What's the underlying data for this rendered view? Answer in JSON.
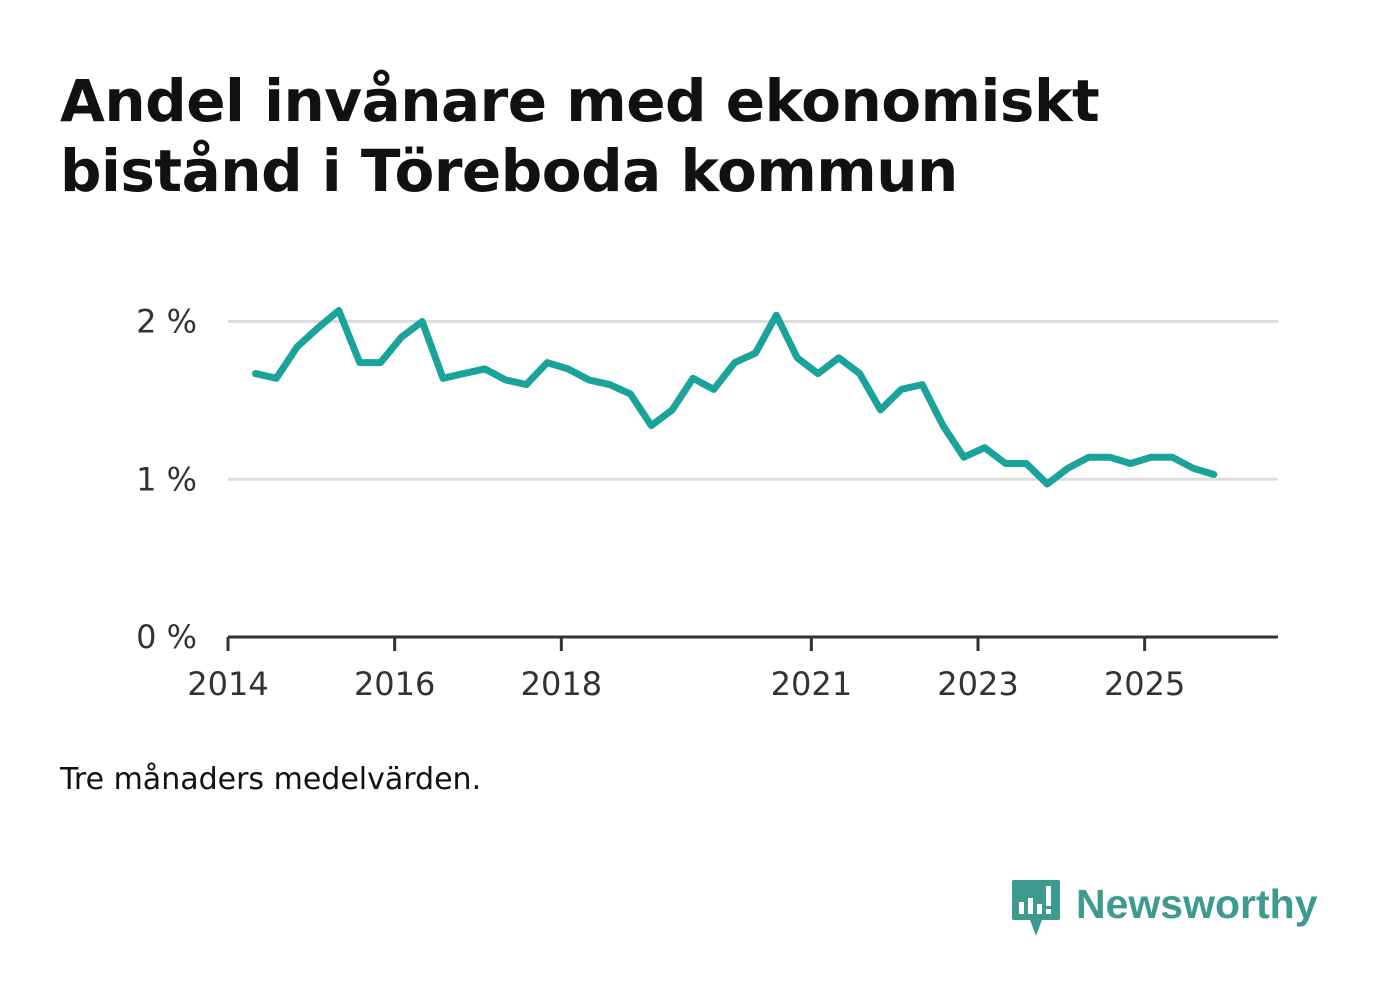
{
  "title": "Andel invånare med ekonomiskt bistånd i Töreboda kommun",
  "footnote": "Tre månaders medelvärden.",
  "brand": {
    "name": "Newsworthy",
    "icon": "bar-chart-speech-bubble-icon",
    "color": "#3e9a8e"
  },
  "colors": {
    "line": "#1aa39a",
    "grid": "#dddddd",
    "axis": "#333333",
    "text": "#111111"
  },
  "chart_data": {
    "type": "line",
    "title": "Andel invånare med ekonomiskt bistånd i Töreboda kommun",
    "xlabel": "",
    "ylabel": "",
    "xlim": [
      2014.0,
      2026.6
    ],
    "ylim": [
      0,
      2.2
    ],
    "yticks": [
      0,
      1,
      2
    ],
    "ytick_labels": [
      "0 %",
      "1 %",
      "2 %"
    ],
    "xticks": [
      2014,
      2016,
      2018,
      2021,
      2023,
      2025
    ],
    "xtick_labels": [
      "2014",
      "2016",
      "2018",
      "2021",
      "2023",
      "2025"
    ],
    "grid": true,
    "series": [
      {
        "name": "Andel invånare med ekonomiskt bistånd",
        "x": [
          2014.33,
          2014.58,
          2014.83,
          2015.08,
          2015.33,
          2015.58,
          2015.83,
          2016.08,
          2016.33,
          2016.58,
          2016.83,
          2017.08,
          2017.33,
          2017.58,
          2017.83,
          2018.08,
          2018.33,
          2018.58,
          2018.83,
          2019.08,
          2019.33,
          2019.58,
          2019.83,
          2020.08,
          2020.33,
          2020.58,
          2020.83,
          2021.08,
          2021.33,
          2021.58,
          2021.83,
          2022.08,
          2022.33,
          2022.58,
          2022.83,
          2023.08,
          2023.33,
          2023.58,
          2023.83,
          2024.08,
          2024.33,
          2024.58,
          2024.83,
          2025.08,
          2025.33,
          2025.58,
          2025.83
        ],
        "values": [
          1.67,
          1.64,
          1.84,
          1.96,
          2.07,
          1.74,
          1.74,
          1.9,
          2.0,
          1.64,
          1.67,
          1.7,
          1.63,
          1.6,
          1.74,
          1.7,
          1.63,
          1.6,
          1.54,
          1.34,
          1.44,
          1.64,
          1.57,
          1.74,
          1.8,
          2.04,
          1.77,
          1.67,
          1.77,
          1.67,
          1.44,
          1.57,
          1.6,
          1.34,
          1.14,
          1.2,
          1.1,
          1.1,
          0.97,
          1.07,
          1.14,
          1.14,
          1.1,
          1.14,
          1.14,
          1.07,
          1.03
        ]
      }
    ]
  }
}
